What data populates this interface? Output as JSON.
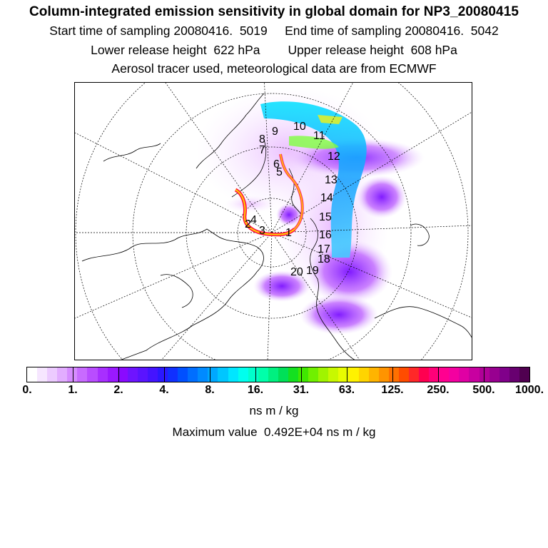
{
  "header": {
    "title": "Column-integrated emission sensitivity in global domain for NP3_20080415",
    "line1": "Start time of sampling 20080416.  5019     End time of sampling 20080416.  5042",
    "line2": "Lower release height  622 hPa        Upper release height  608 hPa",
    "line3": "Aerosol tracer used, meteorological data are from ECMWF"
  },
  "map": {
    "projection": "north polar stereographic",
    "trajectory_labels": [
      "1",
      "2",
      "3",
      "4",
      "5",
      "6",
      "7",
      "8",
      "9",
      "10",
      "11",
      "12",
      "13",
      "14",
      "15",
      "16",
      "17",
      "18",
      "19",
      "20"
    ]
  },
  "colorbar": {
    "tick_labels": [
      "0.",
      "1.",
      "2.",
      "4.",
      "8.",
      "16.",
      "31.",
      "63.",
      "125.",
      "250.",
      "500.",
      "1000."
    ],
    "colors": [
      "#ffffff",
      "#f6e6ff",
      "#eccbff",
      "#e2adff",
      "#d68cff",
      "#c86bff",
      "#b94dff",
      "#a82fff",
      "#9a19ff",
      "#8a0aff",
      "#6e14ff",
      "#5a14ff",
      "#4414ff",
      "#2a18ff",
      "#1030ff",
      "#0050ff",
      "#006eff",
      "#008aff",
      "#00a8ff",
      "#00c6ff",
      "#00e6ff",
      "#00ffee",
      "#00ffcc",
      "#00ffaa",
      "#00f080",
      "#00e058",
      "#14e020",
      "#40e800",
      "#70f000",
      "#a0f400",
      "#c8f800",
      "#e8fc00",
      "#fff200",
      "#ffd400",
      "#ffb400",
      "#ff9400",
      "#ff7000",
      "#ff4c00",
      "#ff2828",
      "#ff0050",
      "#ff0078",
      "#ff0090",
      "#f400a0",
      "#e000a4",
      "#c800a0",
      "#b00098",
      "#980090",
      "#80008a",
      "#680070",
      "#500050"
    ],
    "units": "ns m / kg"
  },
  "footer": {
    "maxval": "Maximum value  0.492E+04 ns m / kg"
  }
}
